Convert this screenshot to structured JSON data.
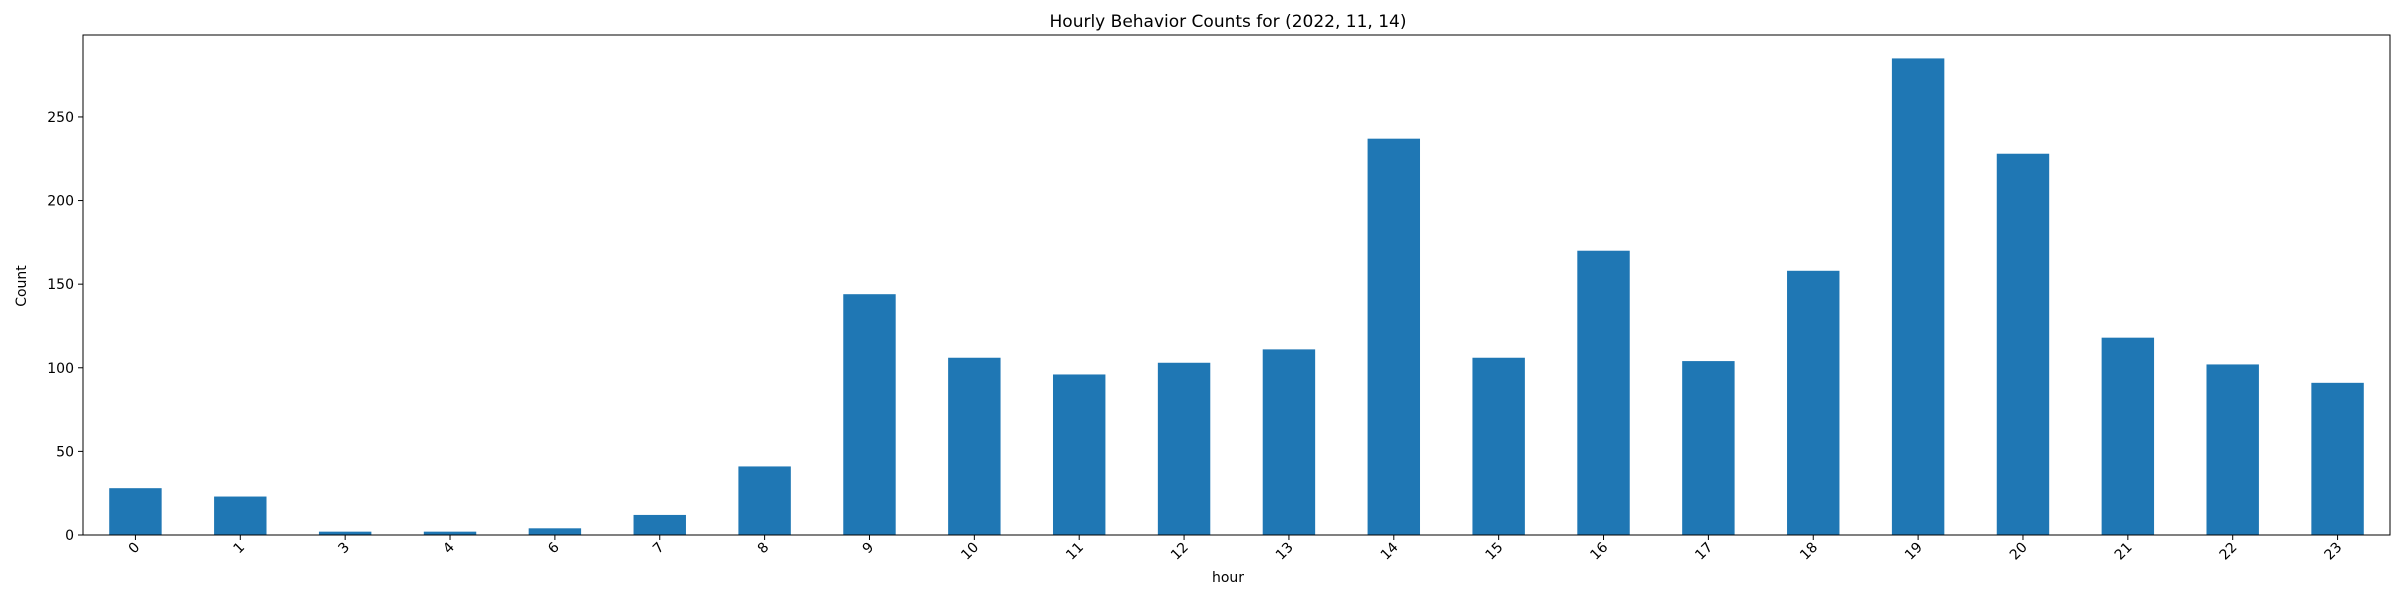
{
  "chart_data": {
    "type": "bar",
    "title": "Hourly Behavior Counts for (2022, 11, 14)",
    "xlabel": "hour",
    "ylabel": "Count",
    "categories": [
      "0",
      "1",
      "3",
      "4",
      "6",
      "7",
      "8",
      "9",
      "10",
      "11",
      "12",
      "13",
      "14",
      "15",
      "16",
      "17",
      "18",
      "19",
      "20",
      "21",
      "22",
      "23"
    ],
    "values": [
      28,
      23,
      2,
      2,
      4,
      12,
      41,
      144,
      106,
      96,
      103,
      111,
      237,
      106,
      170,
      104,
      158,
      285,
      228,
      118,
      102,
      91
    ],
    "ylim": [
      0,
      299
    ],
    "yticks": [
      0,
      50,
      100,
      150,
      200,
      250
    ],
    "bar_color": "#1f77b4",
    "grid": false,
    "legend": "none"
  }
}
